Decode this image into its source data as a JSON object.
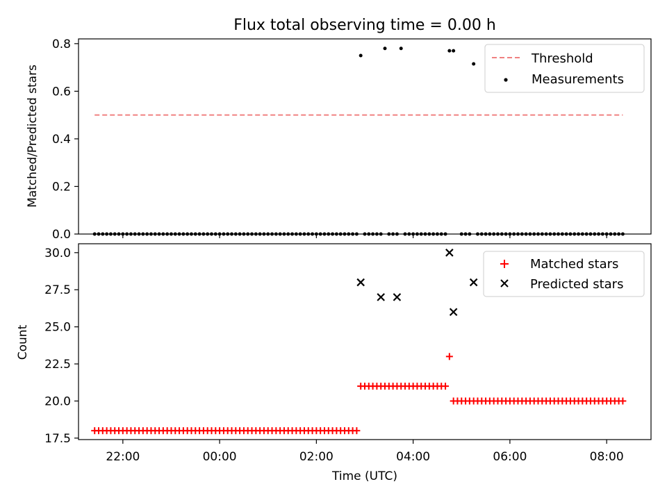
{
  "chart_data": [
    {
      "type": "scatter",
      "title": "Flux total observing time = 0.00 h",
      "ylabel": "Matched/Predicted stars",
      "xlabel": "",
      "ylim": [
        0,
        0.82
      ],
      "xlim": [
        "21:05",
        "08:55"
      ],
      "y_ticks": [
        "0.0",
        "0.2",
        "0.4",
        "0.6",
        "0.8"
      ],
      "y_tick_values": [
        0.0,
        0.2,
        0.4,
        0.6,
        0.8
      ],
      "legend": {
        "placement": "top-right",
        "entries": [
          "Threshold",
          "Measurements"
        ]
      },
      "threshold": {
        "name": "Threshold",
        "y": 0.5,
        "x_start": "21:25",
        "x_end": "08:20",
        "color": "#f08080",
        "style": "dashed"
      },
      "measurements": {
        "name": "Measurements",
        "color": "#000000",
        "zero_runs": [
          {
            "from": "21:25",
            "to": "02:50",
            "step_min": 5
          },
          {
            "from": "03:00",
            "to": "03:20",
            "step_min": 5
          },
          {
            "from": "03:30",
            "to": "03:40",
            "step_min": 5
          },
          {
            "from": "03:50",
            "to": "04:40",
            "step_min": 5
          },
          {
            "from": "05:00",
            "to": "05:10",
            "step_min": 5
          },
          {
            "from": "05:20",
            "to": "08:20",
            "step_min": 5
          }
        ],
        "points": [
          {
            "x": "02:55",
            "y": 0.75
          },
          {
            "x": "03:25",
            "y": 0.78
          },
          {
            "x": "03:45",
            "y": 0.78
          },
          {
            "x": "04:45",
            "y": 0.77
          },
          {
            "x": "04:50",
            "y": 0.77
          },
          {
            "x": "05:15",
            "y": 0.715
          }
        ]
      }
    },
    {
      "type": "scatter",
      "title": "",
      "ylabel": "Count",
      "xlabel": "Time (UTC)",
      "ylim": [
        17.4,
        30.6
      ],
      "xlim": [
        "21:05",
        "08:55"
      ],
      "y_ticks": [
        "17.5",
        "20.0",
        "22.5",
        "25.0",
        "27.5",
        "30.0"
      ],
      "y_tick_values": [
        17.5,
        20.0,
        22.5,
        25.0,
        27.5,
        30.0
      ],
      "x_ticks": [
        "22:00",
        "00:00",
        "02:00",
        "04:00",
        "06:00",
        "08:00"
      ],
      "legend": {
        "placement": "top-right",
        "entries": [
          "Matched stars",
          "Predicted stars"
        ]
      },
      "series": [
        {
          "name": "Matched stars",
          "marker": "+",
          "color": "#ff0000",
          "runs": [
            {
              "from": "21:25",
              "to": "02:50",
              "step_min": 5,
              "value": 18
            },
            {
              "from": "02:55",
              "to": "04:40",
              "step_min": 5,
              "value": 21
            },
            {
              "from": "04:50",
              "to": "08:20",
              "step_min": 5,
              "value": 20
            }
          ],
          "points": [
            {
              "x": "04:45",
              "y": 23
            }
          ]
        },
        {
          "name": "Predicted stars",
          "marker": "x",
          "color": "#000000",
          "points": [
            {
              "x": "02:55",
              "y": 28
            },
            {
              "x": "03:20",
              "y": 27
            },
            {
              "x": "03:40",
              "y": 27
            },
            {
              "x": "04:45",
              "y": 30
            },
            {
              "x": "04:50",
              "y": 26
            },
            {
              "x": "05:15",
              "y": 28
            }
          ]
        }
      ]
    }
  ]
}
